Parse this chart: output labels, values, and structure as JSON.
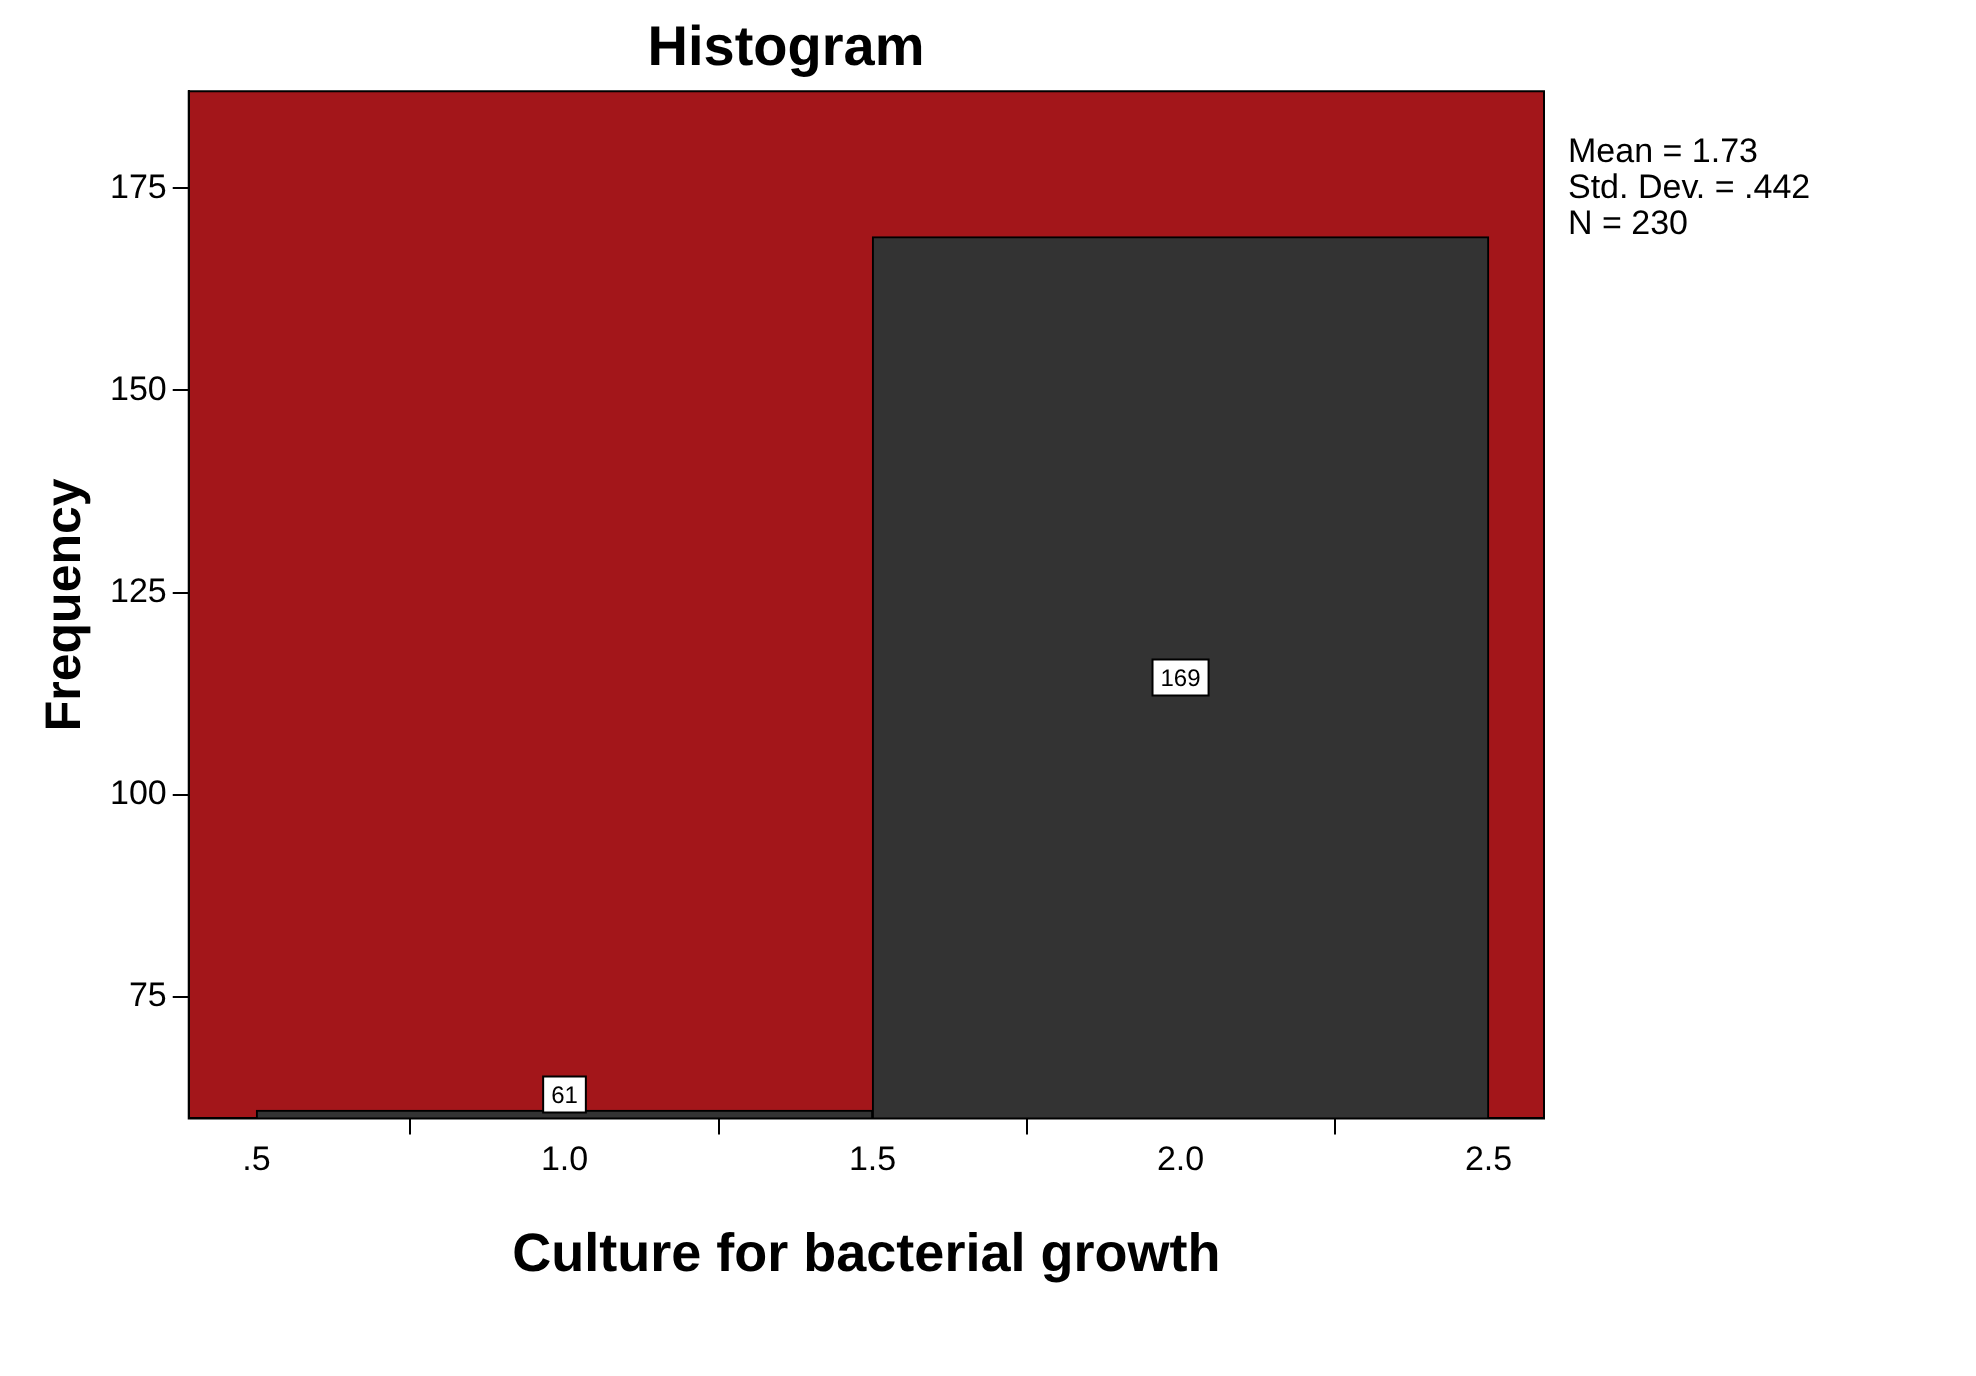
{
  "chart_data": {
    "type": "histogram",
    "title": "Histogram",
    "xlabel": "Culture for bacterial growth",
    "ylabel": "Frequency",
    "bins": [
      0.5,
      1.5,
      2.5
    ],
    "values": [
      61,
      169
    ],
    "color": "#333333",
    "xlim": [
      0.39,
      2.59
    ],
    "xticks": [
      {
        "value": 0.5,
        "label": ".5"
      },
      {
        "value": 1.0,
        "label": "1.0"
      },
      {
        "value": 1.5,
        "label": "1.5"
      },
      {
        "value": 2.0,
        "label": "2.0"
      },
      {
        "value": 2.5,
        "label": "2.5"
      }
    ],
    "ylim": [
      60,
      187
    ],
    "yticks": [
      75,
      100,
      125,
      150,
      175
    ],
    "data_labels": true,
    "grid": false,
    "legend": false,
    "annotations": [
      "Mean = 1.73",
      "Std. Dev. = .442",
      "N = 230"
    ]
  }
}
